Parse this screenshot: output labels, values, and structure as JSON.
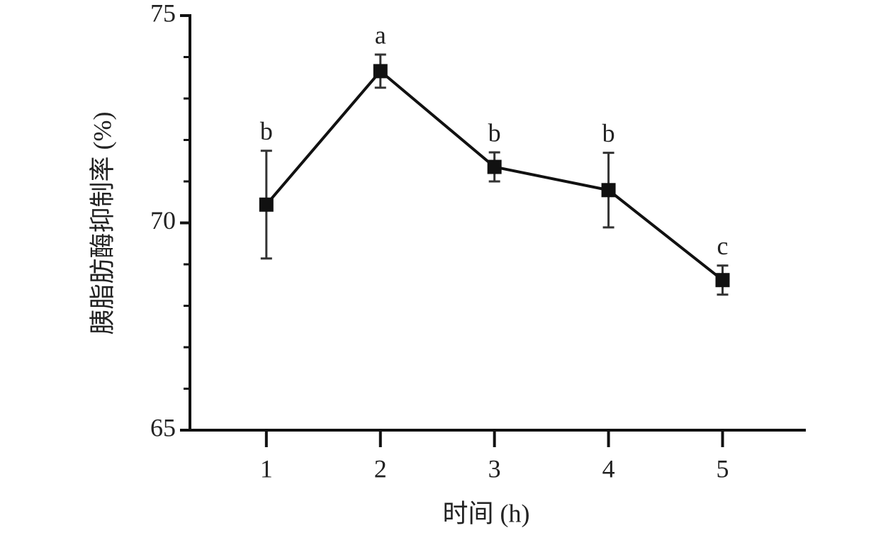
{
  "chart_data": {
    "type": "line",
    "x_label": "时间 (h)",
    "y_label": "胰脂肪酶抑制率 (%)",
    "x": [
      1,
      2,
      3,
      4,
      5
    ],
    "series": [
      {
        "color": "#111111",
        "values": [
          70.44,
          73.66,
          71.35,
          70.79,
          68.62
        ],
        "errors": [
          1.3,
          0.4,
          0.35,
          0.9,
          0.35
        ]
      }
    ],
    "annotations": [
      "b",
      "a",
      "b",
      "b",
      "c"
    ],
    "xlim": [
      0.33,
      5.73
    ],
    "xticks": [
      1,
      2,
      3,
      4,
      5
    ],
    "ylim": [
      65,
      75
    ],
    "yticks": [
      65,
      70,
      75
    ],
    "yminor_ticks": [
      66,
      67,
      68,
      69,
      71,
      72,
      73,
      74
    ],
    "grid": false
  }
}
